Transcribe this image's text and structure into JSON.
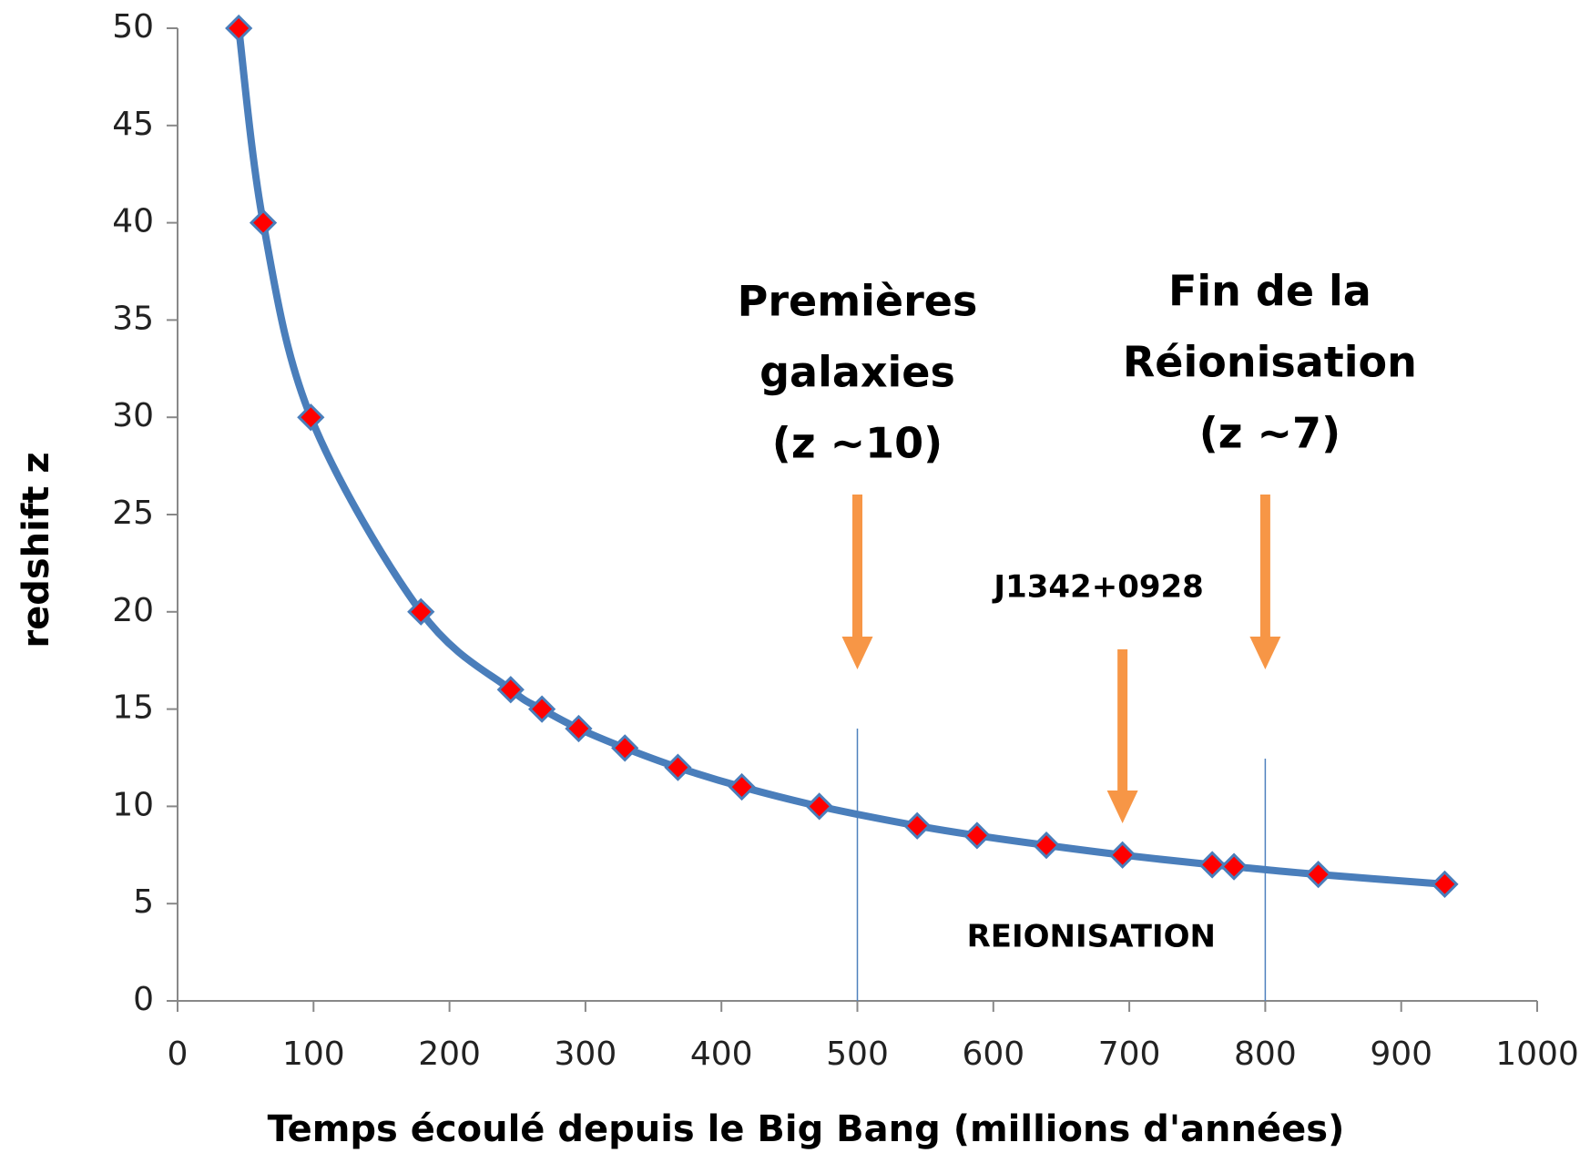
{
  "chart_data": {
    "type": "line",
    "x_label": "Temps écoulé depuis le Big Bang (millions d'années)",
    "y_label": "redshift z",
    "x": [
      45,
      63,
      98,
      179,
      245,
      268,
      295,
      329,
      368,
      415,
      472,
      544,
      588,
      639,
      695,
      761,
      777,
      839,
      932
    ],
    "series": [
      {
        "line_color": "#4a7ebb",
        "marker_color": "#ff0000",
        "values": [
          50,
          40,
          30,
          20,
          16,
          15,
          14,
          13,
          12,
          11,
          10,
          9,
          8.5,
          8,
          7.5,
          7,
          6.9,
          6.5,
          6
        ]
      }
    ],
    "xlim": [
      0,
      1000
    ],
    "xticks": [
      0,
      100,
      200,
      300,
      400,
      500,
      600,
      700,
      800,
      900,
      1000
    ],
    "ylim": [
      0,
      50
    ],
    "yticks": [
      0,
      5,
      10,
      15,
      20,
      25,
      30,
      35,
      40,
      45,
      50
    ],
    "vlines": [
      500,
      800
    ],
    "annotations": [
      {
        "lines": [
          "Premières",
          "galaxies",
          "(z ~10)"
        ],
        "x": 500
      },
      {
        "lines": [
          "Fin de la",
          "Réionisation",
          "(z ~7)"
        ],
        "x": 800
      },
      {
        "lines": [
          "J1342+0928"
        ],
        "x": 695
      },
      {
        "lines": [
          "REIONISATION"
        ],
        "x": 672
      }
    ],
    "arrow_color": "#f79646",
    "vline_color": "#4f81bd"
  }
}
